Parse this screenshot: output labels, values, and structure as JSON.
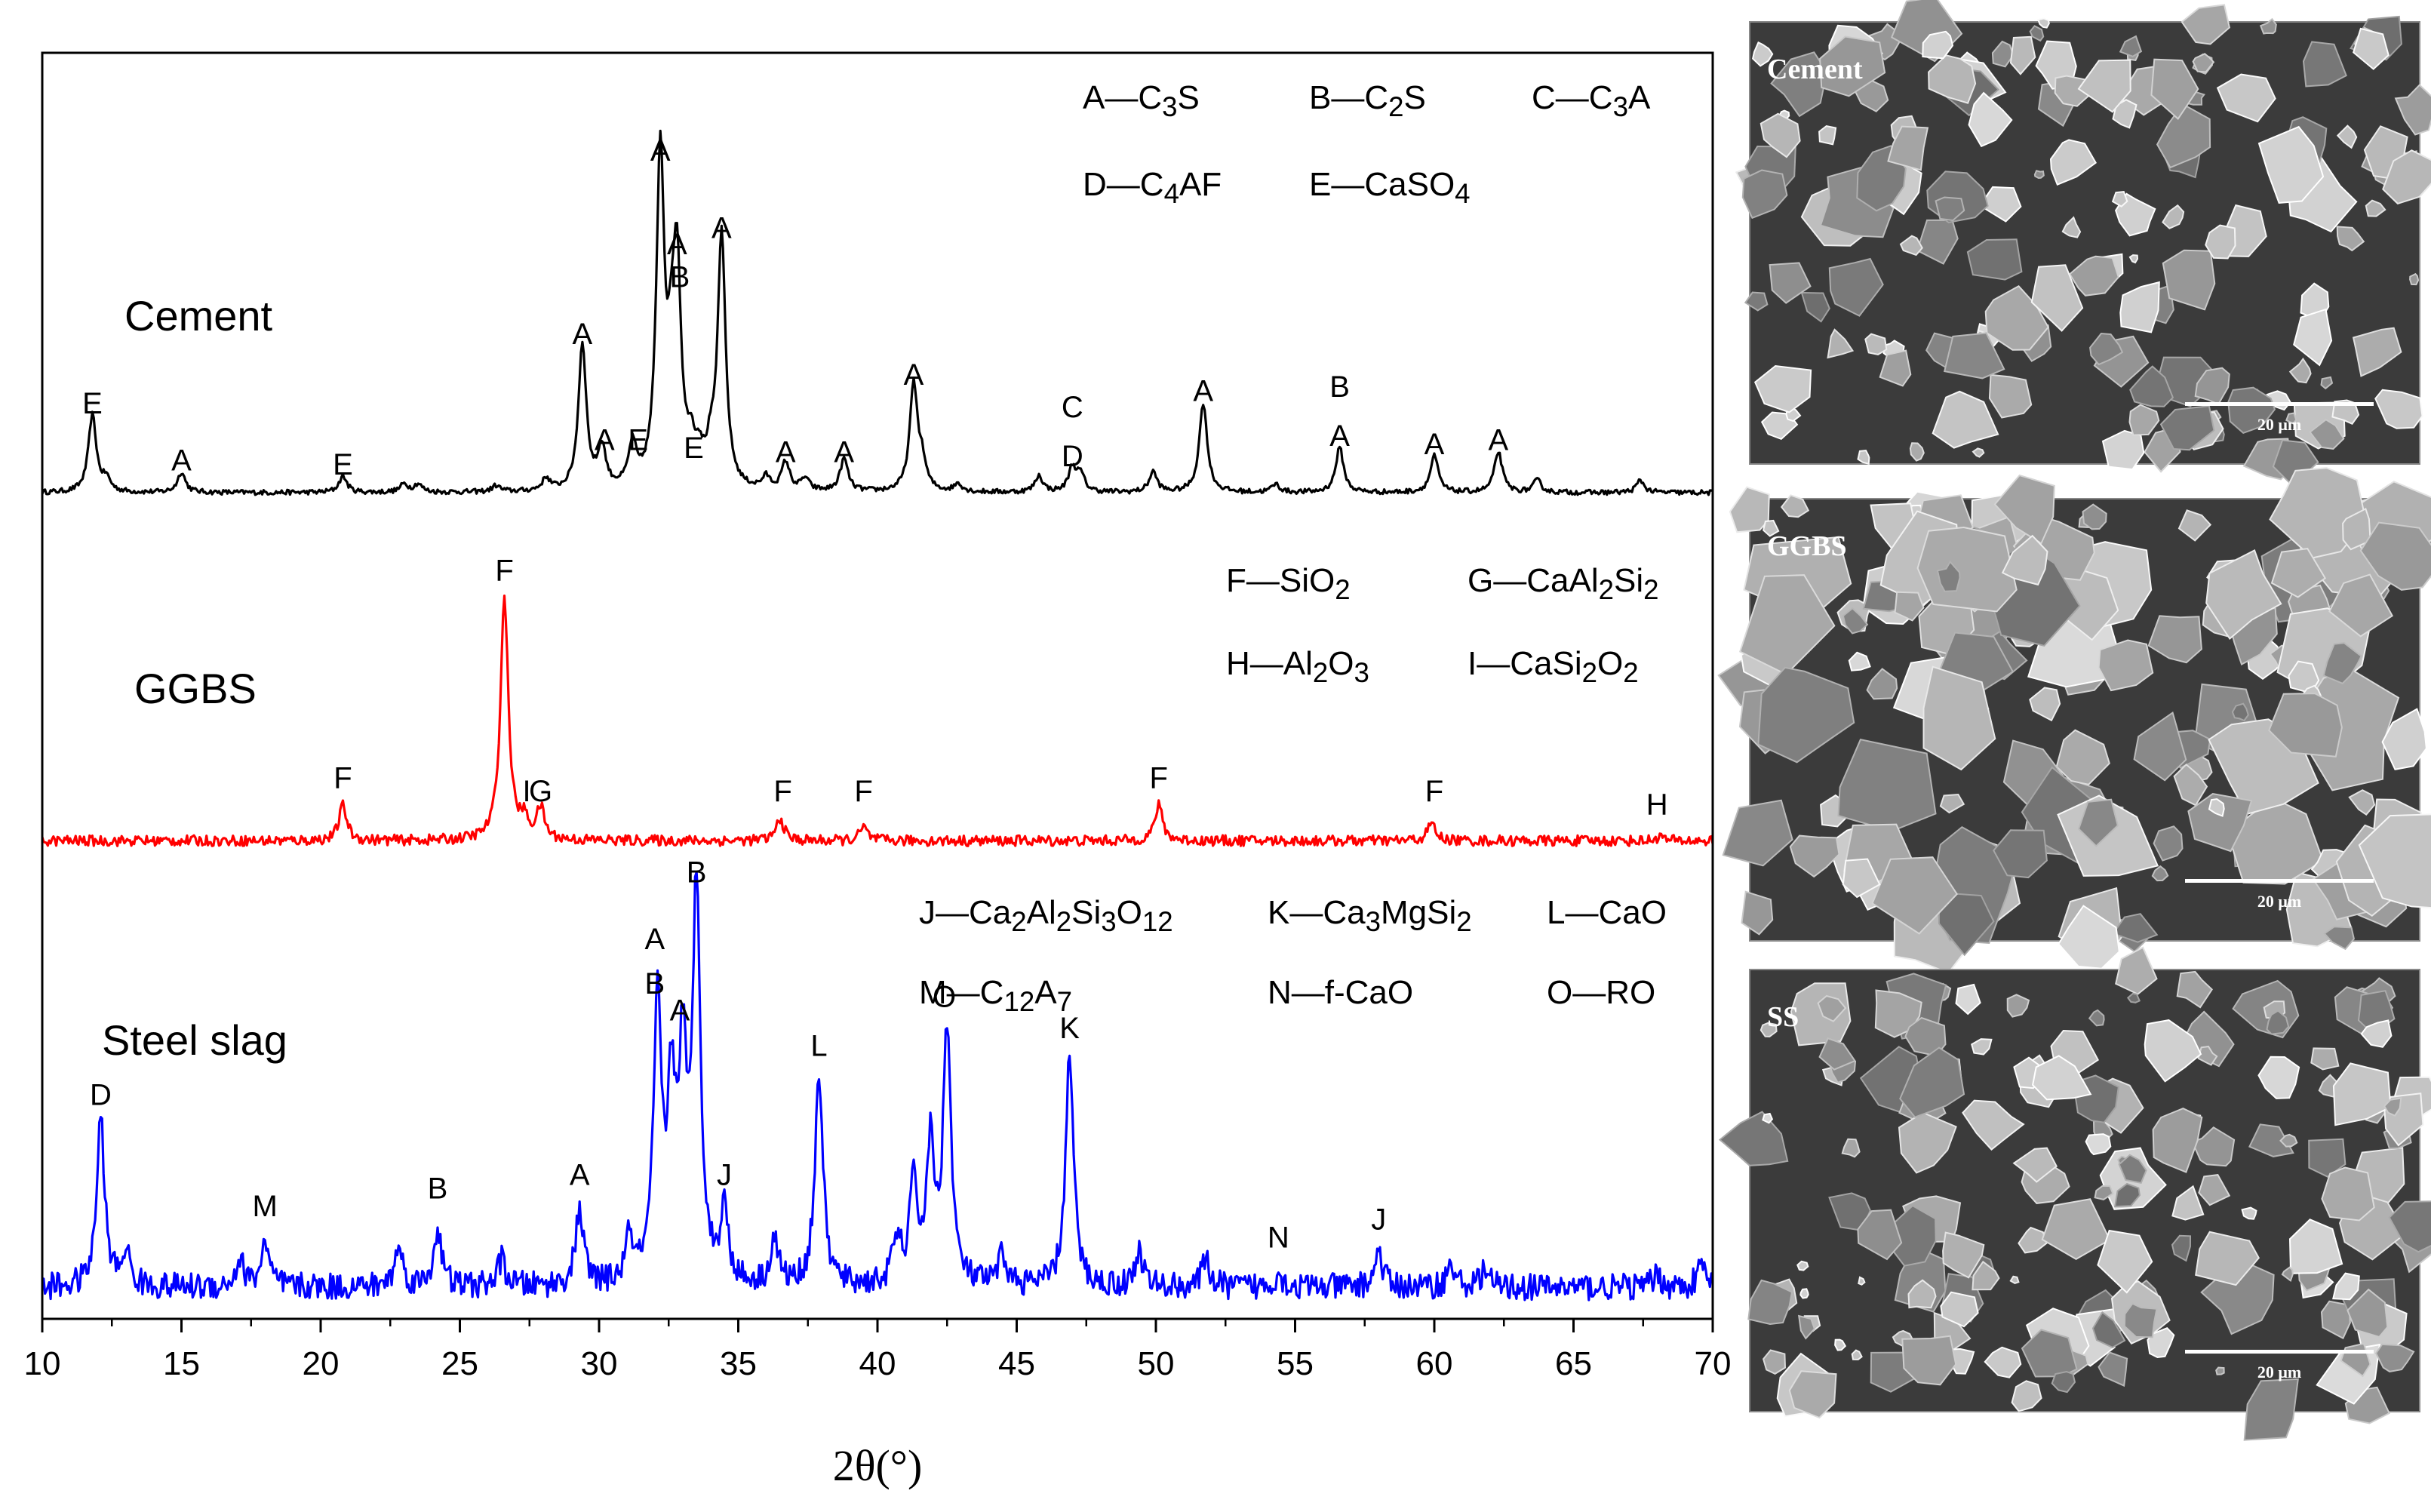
{
  "chart_data": {
    "type": "line",
    "xlabel": "2θ(°)",
    "ylabel": "",
    "xlim": [
      10,
      70
    ],
    "x_ticks": [
      "10",
      "15",
      "20",
      "25",
      "30",
      "35",
      "40",
      "45",
      "50",
      "55",
      "60",
      "65",
      "70"
    ],
    "grid": false,
    "series": [
      {
        "name": "Cement",
        "color": "#000000",
        "baseline": 0.035,
        "noise": 0.006,
        "peaks": [
          [
            11.8,
            0.19
          ],
          [
            12.3,
            0.03
          ],
          [
            15.0,
            0.05
          ],
          [
            20.8,
            0.04
          ],
          [
            23.0,
            0.02
          ],
          [
            23.5,
            0.02
          ],
          [
            26.3,
            0.015
          ],
          [
            28.1,
            0.03
          ],
          [
            29.4,
            0.36
          ],
          [
            30.1,
            0.1
          ],
          [
            31.2,
            0.1
          ],
          [
            32.2,
            0.81
          ],
          [
            32.6,
            0.2
          ],
          [
            32.8,
            0.5
          ],
          [
            33.3,
            0.08
          ],
          [
            33.6,
            0.06
          ],
          [
            34.0,
            0.07
          ],
          [
            34.4,
            0.62
          ],
          [
            36.0,
            0.03
          ],
          [
            36.7,
            0.07
          ],
          [
            37.4,
            0.03
          ],
          [
            38.8,
            0.08
          ],
          [
            41.3,
            0.26
          ],
          [
            41.6,
            0.06
          ],
          [
            42.9,
            0.02
          ],
          [
            45.8,
            0.04
          ],
          [
            47.0,
            0.06
          ],
          [
            47.3,
            0.04
          ],
          [
            49.9,
            0.05
          ],
          [
            51.7,
            0.22
          ],
          [
            54.3,
            0.02
          ],
          [
            56.6,
            0.11
          ],
          [
            60.0,
            0.09
          ],
          [
            62.3,
            0.1
          ],
          [
            63.7,
            0.03
          ],
          [
            67.4,
            0.03
          ]
        ]
      },
      {
        "name": "GGBS",
        "color": "#ff0000",
        "baseline": 0.03,
        "noise": 0.012,
        "peaks": [
          [
            20.8,
            0.08
          ],
          [
            26.6,
            0.55
          ],
          [
            27.3,
            0.04
          ],
          [
            27.9,
            0.07
          ],
          [
            36.5,
            0.05
          ],
          [
            39.5,
            0.03
          ],
          [
            50.1,
            0.08
          ],
          [
            59.9,
            0.04
          ],
          [
            68.1,
            0.01
          ]
        ]
      },
      {
        "name": "Steel slag",
        "color": "#0000ff",
        "baseline": 0.04,
        "noise": 0.03,
        "peaks": [
          [
            12.1,
            0.38
          ],
          [
            13.0,
            0.08
          ],
          [
            17.1,
            0.06
          ],
          [
            18.0,
            0.1
          ],
          [
            22.8,
            0.09
          ],
          [
            24.2,
            0.13
          ],
          [
            26.5,
            0.06
          ],
          [
            29.3,
            0.17
          ],
          [
            31.1,
            0.1
          ],
          [
            32.1,
            0.61
          ],
          [
            32.6,
            0.4
          ],
          [
            33.0,
            0.47
          ],
          [
            33.5,
            0.88
          ],
          [
            34.5,
            0.16
          ],
          [
            36.3,
            0.1
          ],
          [
            37.9,
            0.48
          ],
          [
            40.7,
            0.1
          ],
          [
            41.3,
            0.22
          ],
          [
            41.9,
            0.3
          ],
          [
            42.5,
            0.58
          ],
          [
            44.5,
            0.07
          ],
          [
            46.9,
            0.52
          ],
          [
            49.4,
            0.08
          ],
          [
            51.8,
            0.06
          ],
          [
            54.4,
            0.03
          ],
          [
            58.0,
            0.08
          ],
          [
            60.6,
            0.05
          ],
          [
            61.8,
            0.04
          ],
          [
            68.0,
            0.03
          ],
          [
            69.6,
            0.05
          ]
        ]
      }
    ],
    "peak_labels": [
      {
        "series": 0,
        "x": 11.8,
        "y": 0.23,
        "text": "E"
      },
      {
        "series": 0,
        "x": 15.0,
        "y": 0.09,
        "text": "A"
      },
      {
        "series": 0,
        "x": 20.8,
        "y": 0.08,
        "text": "E"
      },
      {
        "series": 0,
        "x": 29.4,
        "y": 0.4,
        "text": "A"
      },
      {
        "series": 0,
        "x": 30.2,
        "y": 0.14,
        "text": "A"
      },
      {
        "series": 0,
        "x": 31.4,
        "y": 0.14,
        "text": "E"
      },
      {
        "series": 0,
        "x": 32.2,
        "y": 0.85,
        "text": "A"
      },
      {
        "series": 0,
        "x": 32.8,
        "y": 0.62,
        "text": "A"
      },
      {
        "series": 0,
        "x": 32.9,
        "y": 0.54,
        "text": "B"
      },
      {
        "series": 0,
        "x": 33.4,
        "y": 0.12,
        "text": "E"
      },
      {
        "series": 0,
        "x": 34.4,
        "y": 0.66,
        "text": "A"
      },
      {
        "series": 0,
        "x": 36.7,
        "y": 0.11,
        "text": "A"
      },
      {
        "series": 0,
        "x": 38.8,
        "y": 0.11,
        "text": "A"
      },
      {
        "series": 0,
        "x": 41.3,
        "y": 0.3,
        "text": "A"
      },
      {
        "series": 0,
        "x": 47.0,
        "y": 0.22,
        "text": "C"
      },
      {
        "series": 0,
        "x": 47.0,
        "y": 0.1,
        "text": "D"
      },
      {
        "series": 0,
        "x": 51.7,
        "y": 0.26,
        "text": "A"
      },
      {
        "series": 0,
        "x": 56.6,
        "y": 0.27,
        "text": "B"
      },
      {
        "series": 0,
        "x": 56.6,
        "y": 0.15,
        "text": "A"
      },
      {
        "series": 0,
        "x": 60.0,
        "y": 0.13,
        "text": "A"
      },
      {
        "series": 0,
        "x": 62.3,
        "y": 0.14,
        "text": "A"
      },
      {
        "series": 1,
        "x": 20.8,
        "y": 0.15,
        "text": "F"
      },
      {
        "series": 1,
        "x": 26.6,
        "y": 0.62,
        "text": "F"
      },
      {
        "series": 1,
        "x": 27.4,
        "y": 0.12,
        "text": "I"
      },
      {
        "series": 1,
        "x": 27.9,
        "y": 0.12,
        "text": "G"
      },
      {
        "series": 1,
        "x": 36.6,
        "y": 0.12,
        "text": "F"
      },
      {
        "series": 1,
        "x": 39.5,
        "y": 0.12,
        "text": "F"
      },
      {
        "series": 1,
        "x": 50.1,
        "y": 0.15,
        "text": "F"
      },
      {
        "series": 1,
        "x": 60.0,
        "y": 0.12,
        "text": "F"
      },
      {
        "series": 1,
        "x": 68.0,
        "y": 0.09,
        "text": "H"
      },
      {
        "series": 2,
        "x": 12.1,
        "y": 0.45,
        "text": "D"
      },
      {
        "series": 2,
        "x": 18.0,
        "y": 0.2,
        "text": "M"
      },
      {
        "series": 2,
        "x": 24.2,
        "y": 0.24,
        "text": "B"
      },
      {
        "series": 2,
        "x": 29.3,
        "y": 0.27,
        "text": "A"
      },
      {
        "series": 2,
        "x": 32.0,
        "y": 0.8,
        "text": "A"
      },
      {
        "series": 2,
        "x": 32.0,
        "y": 0.7,
        "text": "B"
      },
      {
        "series": 2,
        "x": 32.9,
        "y": 0.64,
        "text": "A"
      },
      {
        "series": 2,
        "x": 33.5,
        "y": 0.95,
        "text": "B"
      },
      {
        "series": 2,
        "x": 34.5,
        "y": 0.27,
        "text": "J"
      },
      {
        "series": 2,
        "x": 37.9,
        "y": 0.56,
        "text": "L"
      },
      {
        "series": 2,
        "x": 42.4,
        "y": 0.67,
        "text": "O"
      },
      {
        "series": 2,
        "x": 46.9,
        "y": 0.6,
        "text": "K"
      },
      {
        "series": 2,
        "x": 54.4,
        "y": 0.13,
        "text": "N"
      },
      {
        "series": 2,
        "x": 58.0,
        "y": 0.17,
        "text": "J"
      }
    ],
    "series_labels": [
      "Cement",
      "GGBS",
      "Steel slag"
    ],
    "phase_legends": [
      {
        "series": 0,
        "rows": [
          [
            "A—C<sub>3</sub>S",
            "B—C<sub>2</sub>S",
            "C—C<sub>3</sub>A"
          ],
          [
            "D—C<sub>4</sub>AF",
            "E—CaSO<sub>4</sub>"
          ]
        ]
      },
      {
        "series": 1,
        "rows": [
          [
            "F—SiO<sub>2</sub>",
            "G—CaAl<sub>2</sub>Si<sub>2</sub>"
          ],
          [
            "H—Al<sub>2</sub>O<sub>3</sub>",
            "I—CaSi<sub>2</sub>O<sub>2</sub>"
          ]
        ]
      },
      {
        "series": 2,
        "rows": [
          [
            "J—Ca<sub>2</sub>Al<sub>2</sub>Si<sub>3</sub>O<sub>12</sub>",
            "K—Ca<sub>3</sub>MgSi<sub>2</sub>",
            "L—CaO"
          ],
          [
            "M—C<sub>12</sub>A<sub>7</sub>",
            "N—f-CaO",
            "O—RO"
          ]
        ]
      }
    ]
  },
  "sem_images": [
    {
      "title": "Cement",
      "scale": "20 μm"
    },
    {
      "title": "GGBS",
      "scale": "20 μm"
    },
    {
      "title": "SS",
      "scale": "20 μm"
    }
  ]
}
